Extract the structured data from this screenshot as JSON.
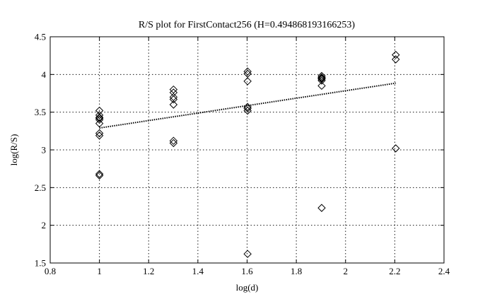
{
  "chart_data": {
    "type": "scatter",
    "title": "R/S plot for FirstContact256 (H=0.494868193166253)",
    "xlabel": "log(d)",
    "ylabel": "log(R/S)",
    "xlim": [
      0.8,
      2.4
    ],
    "ylim": [
      1.5,
      4.5
    ],
    "xticks": [
      0.8,
      1.0,
      1.2,
      1.4,
      1.6,
      1.8,
      2.0,
      2.2,
      2.4
    ],
    "xtick_labels": [
      "0.8",
      "1",
      "1.2",
      "1.4",
      "1.6",
      "1.8",
      "2",
      "2.2",
      "2.4"
    ],
    "yticks": [
      1.5,
      2.0,
      2.5,
      3.0,
      3.5,
      4.0,
      4.5
    ],
    "ytick_labels": [
      "1.5",
      "2",
      "2.5",
      "3",
      "3.5",
      "4",
      "4.5"
    ],
    "grid": true,
    "series": [
      {
        "marker": "diamond",
        "x": [
          1.0,
          1.0,
          1.0,
          1.0,
          1.0,
          1.0,
          1.0,
          1.0,
          1.0,
          1.0,
          1.301,
          1.301,
          1.301,
          1.301,
          1.301,
          1.301,
          1.301,
          1.602,
          1.602,
          1.602,
          1.602,
          1.602,
          1.602,
          1.602,
          1.903,
          1.903,
          1.903,
          1.903,
          1.903,
          1.903,
          1.903,
          2.204,
          2.204,
          2.204
        ],
        "y": [
          3.52,
          3.46,
          3.43,
          3.4,
          3.35,
          3.22,
          3.19,
          2.68,
          2.66,
          3.42,
          3.8,
          3.76,
          3.7,
          3.67,
          3.6,
          3.12,
          3.09,
          4.04,
          4.01,
          3.91,
          3.57,
          3.55,
          3.52,
          1.62,
          3.98,
          3.96,
          3.95,
          3.92,
          3.85,
          3.94,
          2.23,
          4.26,
          4.2,
          3.02
        ]
      }
    ],
    "fit_line": {
      "x": [
        1.0,
        2.204
      ],
      "y": [
        3.29,
        3.885
      ]
    }
  }
}
